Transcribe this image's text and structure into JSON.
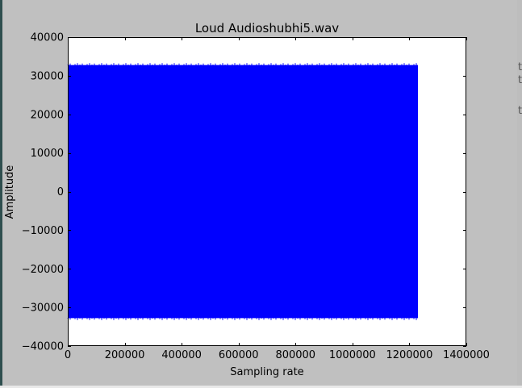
{
  "colors": {
    "figure_background": "#c0c0c0",
    "plot_background": "#ffffff",
    "series": "#0000ff",
    "axis": "#000000"
  },
  "background_window": {
    "glyphs": [
      "t",
      "t",
      "t"
    ]
  },
  "chart_data": {
    "type": "line",
    "title": "Loud Audioshubhi5.wav",
    "xlabel": "Sampling rate",
    "ylabel": "Amplitude",
    "xlim": [
      0,
      1400000
    ],
    "ylim": [
      -40000,
      40000
    ],
    "xticks": [
      0,
      200000,
      400000,
      600000,
      800000,
      1000000,
      1200000,
      1400000
    ],
    "xtick_labels": [
      "0",
      "200000",
      "400000",
      "600000",
      "800000",
      "1000000",
      "1200000",
      "1400000"
    ],
    "yticks": [
      40000,
      30000,
      20000,
      10000,
      0,
      -10000,
      -20000,
      -30000,
      -40000
    ],
    "ytick_labels": [
      "40000",
      "30000",
      "20000",
      "10000",
      "0",
      "−10000",
      "−20000",
      "−30000",
      "−40000"
    ],
    "grid": false,
    "legend": "none",
    "series": [
      {
        "x_range": [
          0,
          1230000
        ],
        "y_max": 32767,
        "y_min": -32768,
        "color": "#0000ff"
      }
    ]
  }
}
